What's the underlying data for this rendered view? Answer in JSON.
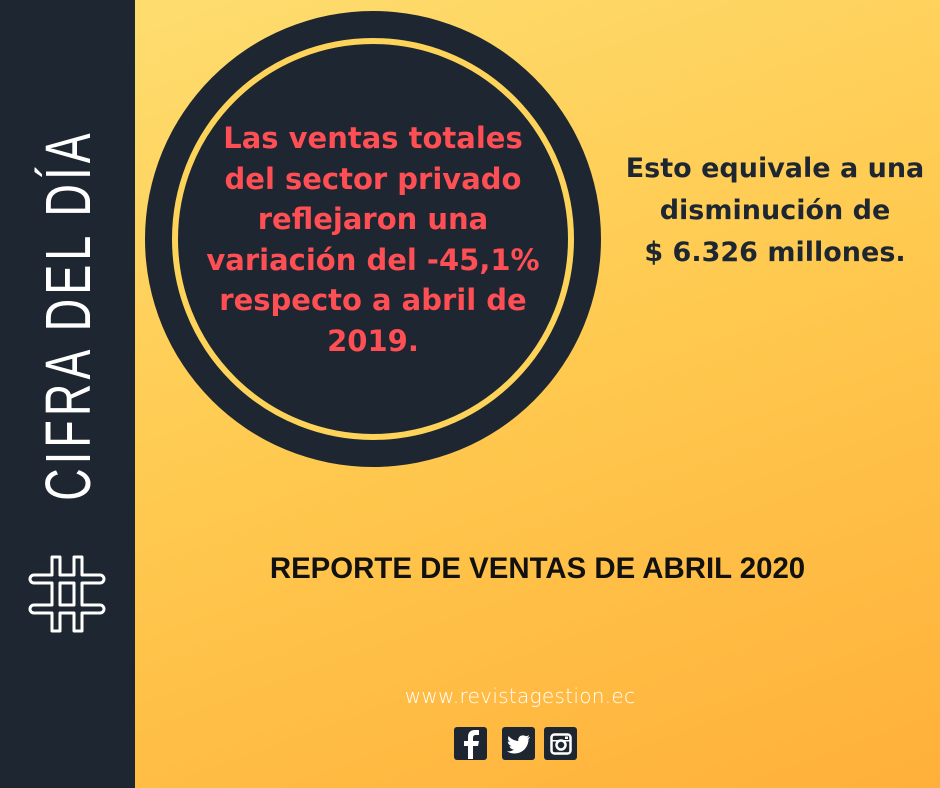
{
  "sidebar": {
    "title": "CIFRA DEL DÍA",
    "icon": "hashtag-icon"
  },
  "circle": {
    "lines": [
      "Las ventas totales",
      "del sector privado",
      "reflejaron una",
      "variación del -45,1%",
      "respecto a abril de",
      "2019."
    ]
  },
  "right": {
    "lines": [
      "Esto equivale a una",
      "disminución de",
      "$ 6.326 millones."
    ]
  },
  "report_title": "REPORTE DE VENTAS DE ABRIL 2020",
  "website": "www.revistagestion.ec",
  "social": [
    "facebook-icon",
    "twitter-icon",
    "instagram-icon"
  ],
  "colors": {
    "dark": "#1e2731",
    "accent_red": "#ff4f55",
    "yellow": "#fdd35a",
    "orange": "#ffb03a"
  }
}
